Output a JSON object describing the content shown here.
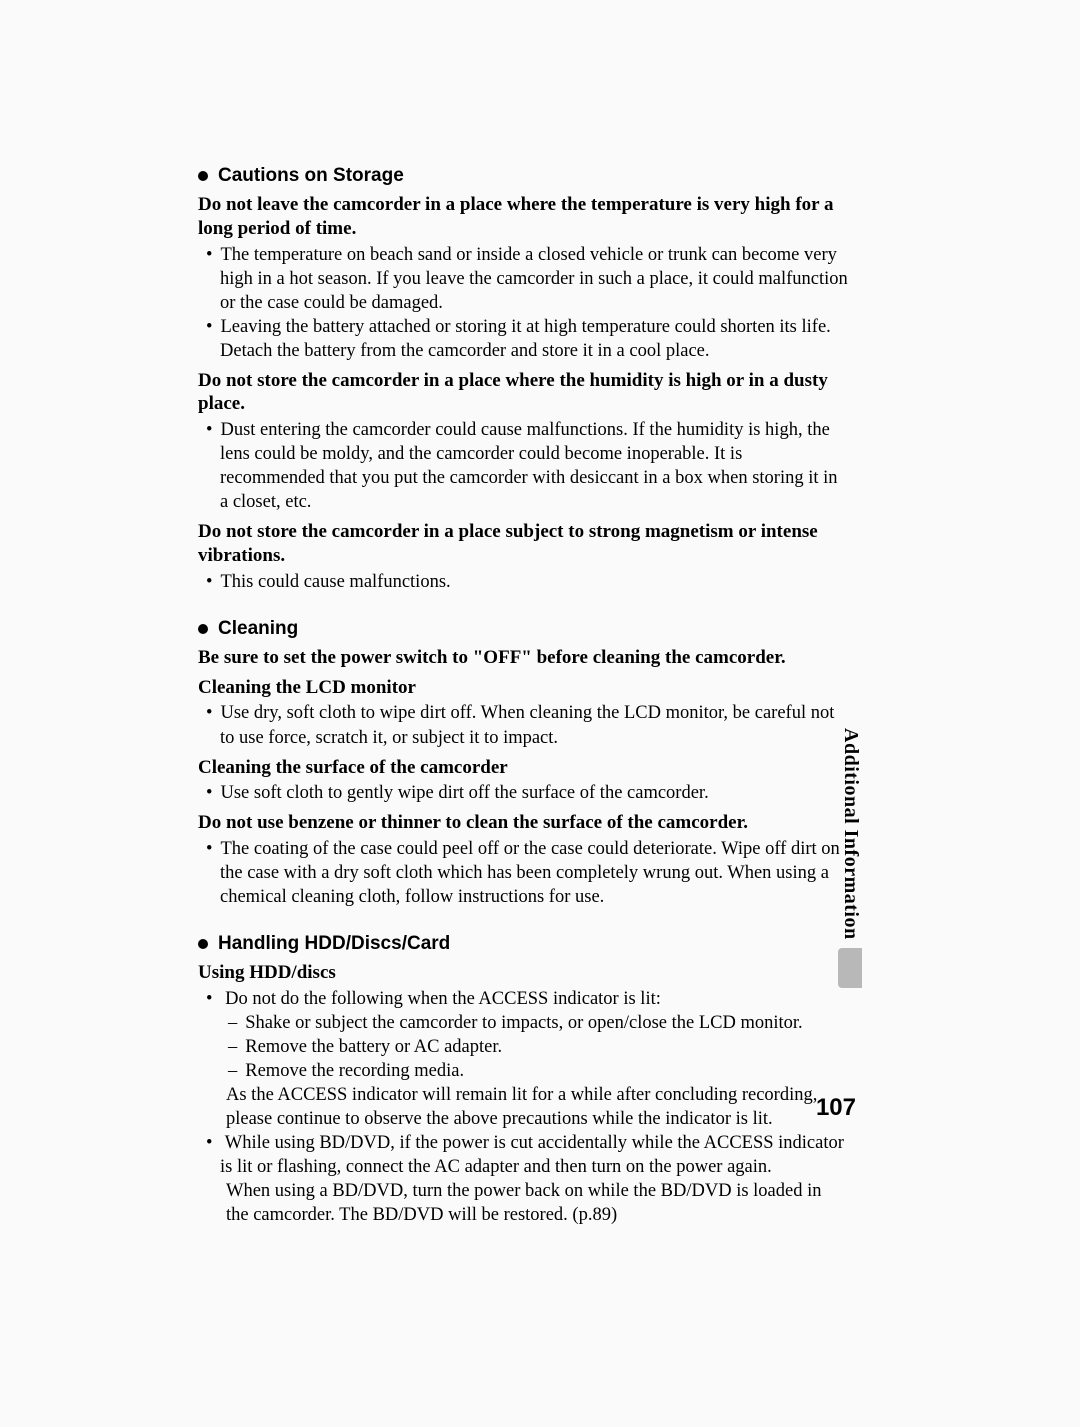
{
  "sideLabel": "Additional Information",
  "pageNumber": "107",
  "sections": {
    "storage": {
      "heading": "Cautions on Storage",
      "h1": "Do not leave the camcorder in a place where the temperature is very high for a long period of time.",
      "b1": "The temperature on beach sand or inside a closed vehicle or trunk can become very high in a hot season. If you leave the camcorder in such a place, it could malfunction or the case could be damaged.",
      "b2": "Leaving the battery attached or storing it at high temperature could shorten its life. Detach the battery from the camcorder and store it in a cool place.",
      "h2": "Do not store the camcorder in a place where the humidity is high or in a dusty place.",
      "b3": "Dust entering the camcorder could cause malfunctions. If the humidity is high, the lens could be moldy, and the camcorder could become inoperable. It is recommended that you put the camcorder with desiccant in a box when storing it in a closet, etc.",
      "h3": "Do not store the camcorder in a place subject to strong magnetism or intense vibrations.",
      "b4": "This could cause malfunctions."
    },
    "cleaning": {
      "heading": "Cleaning",
      "h1": "Be sure to set the power switch to \"OFF\" before cleaning the camcorder.",
      "h2": "Cleaning the LCD monitor",
      "b1": "Use dry, soft cloth to wipe dirt off. When cleaning the LCD monitor, be careful not to use force, scratch it, or subject it to impact.",
      "h3": "Cleaning the surface of the camcorder",
      "b2": "Use soft cloth to gently wipe dirt off the surface of the camcorder.",
      "h4": "Do not use benzene or thinner to clean the surface of the camcorder.",
      "b3": "The coating of the case could peel off or the case could deteriorate. Wipe off dirt on the case with a dry soft cloth which has been completely wrung out. When using a chemical cleaning cloth, follow instructions for use."
    },
    "handling": {
      "heading": "Handling HDD/Discs/Card",
      "h1": "Using HDD/discs",
      "b1_lead": "Do not do the following when the ACCESS indicator is lit:",
      "b1_s1": "Shake or subject the camcorder to impacts, or open/close the LCD monitor.",
      "b1_s2": "Remove the battery or AC adapter.",
      "b1_s3": "Remove the recording media.",
      "b1_tail": "As the ACCESS indicator will remain lit for a while after concluding recording, please continue to observe the above precautions while the indicator is lit.",
      "b2": "While using BD/DVD, if the power is cut accidentally while the ACCESS indicator is lit or flashing, connect the AC adapter and then turn on the power again.",
      "b2_tail": "When using a BD/DVD, turn the power back on while the BD/DVD is loaded in the camcorder. The BD/DVD will be restored. (p.89)"
    }
  }
}
